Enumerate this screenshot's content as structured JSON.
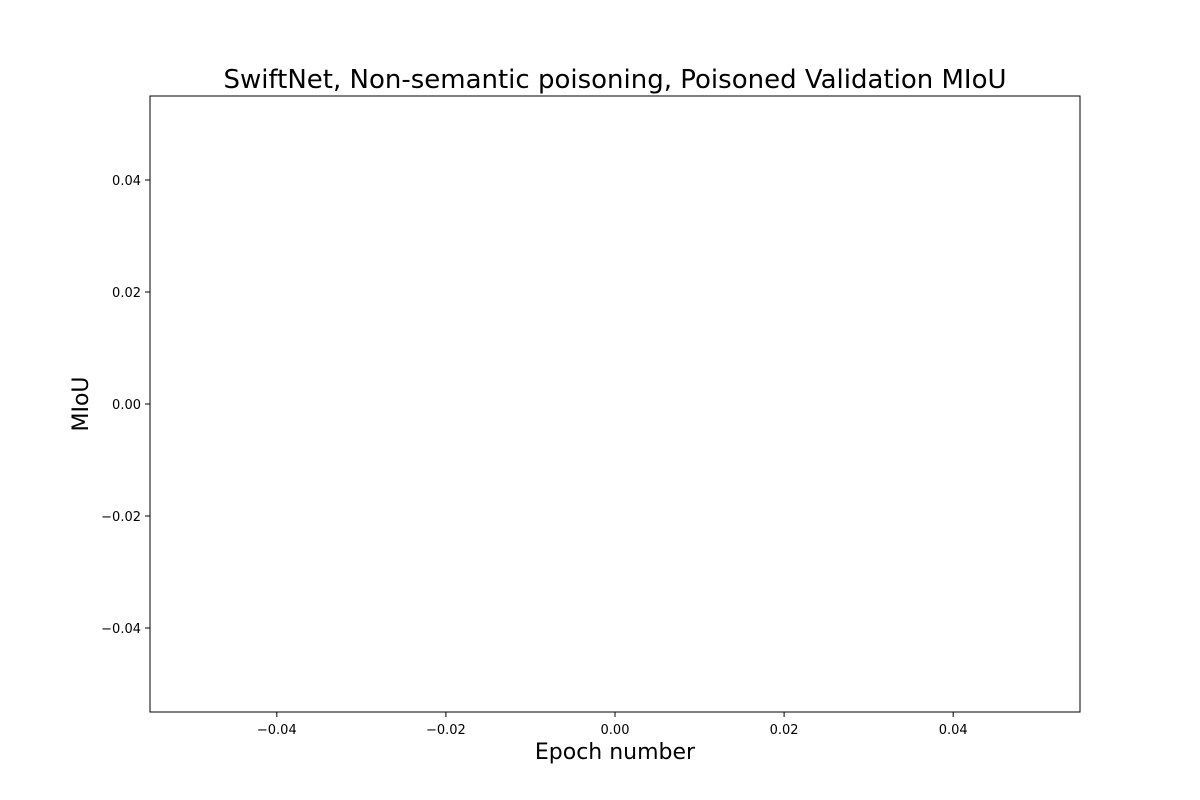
{
  "chart_data": {
    "type": "line",
    "title": "SwiftNet, Non-semantic poisoning, Poisoned Validation MIoU",
    "xlabel": "Epoch number",
    "ylabel": "MIoU",
    "xlim": [
      -0.055,
      0.055
    ],
    "ylim": [
      -0.055,
      0.055
    ],
    "x_ticks": [
      -0.04,
      -0.02,
      0.0,
      0.02,
      0.04
    ],
    "x_tick_labels": [
      "−0.04",
      "−0.02",
      "0.00",
      "0.02",
      "0.04"
    ],
    "y_ticks": [
      -0.04,
      -0.02,
      0.0,
      0.02,
      0.04
    ],
    "y_tick_labels": [
      "−0.04",
      "−0.02",
      "0.00",
      "0.02",
      "0.04"
    ],
    "series": [],
    "grid": false,
    "legend": "none"
  }
}
